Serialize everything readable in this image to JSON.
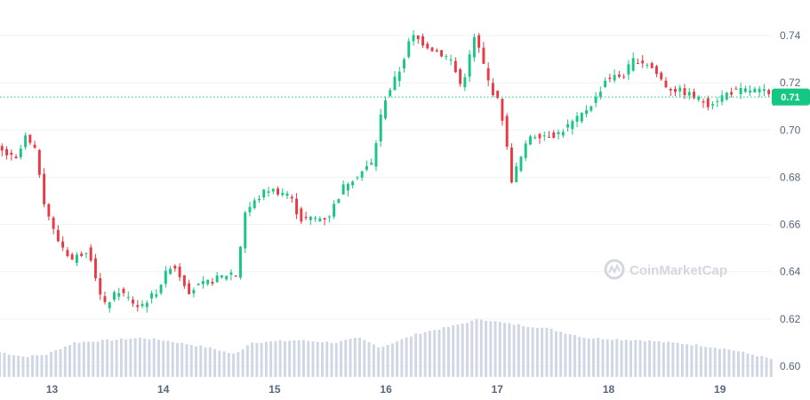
{
  "watermark": {
    "text": "CoinMarketCap",
    "icon": "coinmarketcap-logo"
  },
  "colors": {
    "up": "#16c784",
    "down": "#ea3943",
    "volume": "#cfd6e4",
    "grid": "#eff2f5",
    "price_line": "#16c784",
    "axis_text": "#58667e"
  },
  "current_price": {
    "value": 0.714,
    "label": "0.71"
  },
  "chart_data": {
    "type": "candlestick",
    "title": "",
    "xlabel": "",
    "ylabel": "",
    "ylim": [
      0.597,
      0.749
    ],
    "y_ticks": [
      0.6,
      0.62,
      0.64,
      0.66,
      0.68,
      0.7,
      0.72,
      0.74
    ],
    "y_tick_labels": [
      "0.60",
      "0.62",
      "0.64",
      "0.66",
      "0.68",
      "0.70",
      "0.72",
      "0.74"
    ],
    "x_range": [
      12.53,
      19.47
    ],
    "x_ticks": [
      13,
      14,
      15,
      16,
      17,
      18,
      19
    ],
    "x_tick_labels": [
      "13",
      "14",
      "15",
      "16",
      "17",
      "18",
      "19"
    ],
    "grid": true,
    "candle_interval_days": 0.042,
    "anchors": [
      [
        12.53,
        0.692
      ],
      [
        12.7,
        0.687
      ],
      [
        12.78,
        0.697
      ],
      [
        12.88,
        0.69
      ],
      [
        12.95,
        0.67
      ],
      [
        13.05,
        0.655
      ],
      [
        13.2,
        0.645
      ],
      [
        13.35,
        0.65
      ],
      [
        13.48,
        0.625
      ],
      [
        13.62,
        0.632
      ],
      [
        13.8,
        0.625
      ],
      [
        13.95,
        0.631
      ],
      [
        14.1,
        0.644
      ],
      [
        14.25,
        0.632
      ],
      [
        14.45,
        0.636
      ],
      [
        14.65,
        0.64
      ],
      [
        14.68,
        0.638
      ],
      [
        14.75,
        0.665
      ],
      [
        14.95,
        0.675
      ],
      [
        15.15,
        0.673
      ],
      [
        15.25,
        0.662
      ],
      [
        15.5,
        0.663
      ],
      [
        15.65,
        0.677
      ],
      [
        15.9,
        0.686
      ],
      [
        15.95,
        0.7
      ],
      [
        16.0,
        0.712
      ],
      [
        16.15,
        0.726
      ],
      [
        16.25,
        0.74
      ],
      [
        16.45,
        0.734
      ],
      [
        16.6,
        0.73
      ],
      [
        16.7,
        0.718
      ],
      [
        16.82,
        0.74
      ],
      [
        16.95,
        0.719
      ],
      [
        17.05,
        0.71
      ],
      [
        17.15,
        0.679
      ],
      [
        17.32,
        0.698
      ],
      [
        17.55,
        0.698
      ],
      [
        17.75,
        0.705
      ],
      [
        17.9,
        0.713
      ],
      [
        18.0,
        0.722
      ],
      [
        18.15,
        0.723
      ],
      [
        18.25,
        0.73
      ],
      [
        18.38,
        0.728
      ],
      [
        18.55,
        0.718
      ],
      [
        18.7,
        0.716
      ],
      [
        18.92,
        0.711
      ],
      [
        19.1,
        0.716
      ],
      [
        19.3,
        0.717
      ],
      [
        19.42,
        0.716
      ],
      [
        19.47,
        0.714
      ]
    ],
    "volume_profile": [
      [
        12.53,
        0.606
      ],
      [
        12.75,
        0.604
      ],
      [
        12.95,
        0.605
      ],
      [
        13.2,
        0.61
      ],
      [
        13.5,
        0.611
      ],
      [
        13.8,
        0.612
      ],
      [
        14.0,
        0.611
      ],
      [
        14.4,
        0.608
      ],
      [
        14.65,
        0.605
      ],
      [
        14.78,
        0.61
      ],
      [
        15.2,
        0.611
      ],
      [
        15.55,
        0.61
      ],
      [
        15.75,
        0.612
      ],
      [
        15.95,
        0.608
      ],
      [
        16.3,
        0.614
      ],
      [
        16.6,
        0.617
      ],
      [
        16.85,
        0.62
      ],
      [
        17.1,
        0.618
      ],
      [
        17.45,
        0.616
      ],
      [
        17.8,
        0.612
      ],
      [
        18.3,
        0.611
      ],
      [
        18.8,
        0.609
      ],
      [
        19.1,
        0.607
      ],
      [
        19.47,
        0.603
      ]
    ]
  }
}
